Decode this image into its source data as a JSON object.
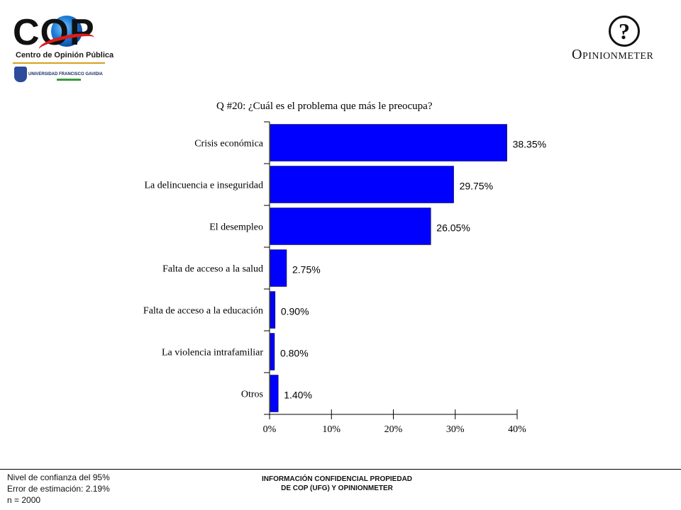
{
  "logos": {
    "cop_word": "COP",
    "cop_subtitle": "Centro de Opinión Pública",
    "ufg_text": "UNIVERSIDAD FRANCISCO GAVIDIA",
    "ufg_seal": "UFG",
    "om_symbol": "?",
    "om_word": "Opinionmeter"
  },
  "chart_data": {
    "type": "bar",
    "orientation": "horizontal",
    "title": "Q #20: ¿Cuál es el problema que más le preocupa?",
    "categories": [
      "Crisis económica",
      "La delincuencia e inseguridad",
      "El desempleo",
      "Falta de acceso a la salud",
      "Falta de acceso a la educación",
      "La violencia intrafamiliar",
      "Otros"
    ],
    "values": [
      38.35,
      29.75,
      26.05,
      2.75,
      0.9,
      0.8,
      1.4
    ],
    "data_labels": [
      "38.35%",
      "29.75%",
      "26.05%",
      "2.75%",
      "0.90%",
      "0.80%",
      "1.40%"
    ],
    "xlim": [
      0,
      40
    ],
    "xticks": [
      0,
      10,
      20,
      30,
      40
    ],
    "xtick_labels": [
      "0%",
      "10%",
      "20%",
      "30%",
      "40%"
    ],
    "bar_color": "#0000ff",
    "grid": false,
    "legend": "none"
  },
  "footer": {
    "left_lines": [
      "Nivel de confianza del 95%",
      "Error de estimación: 2.19%",
      "n = 2000"
    ],
    "center_lines": [
      "INFORMACIÓN CONFIDENCIAL PROPIEDAD",
      "DE COP (UFG) Y OPINIONMETER"
    ]
  }
}
